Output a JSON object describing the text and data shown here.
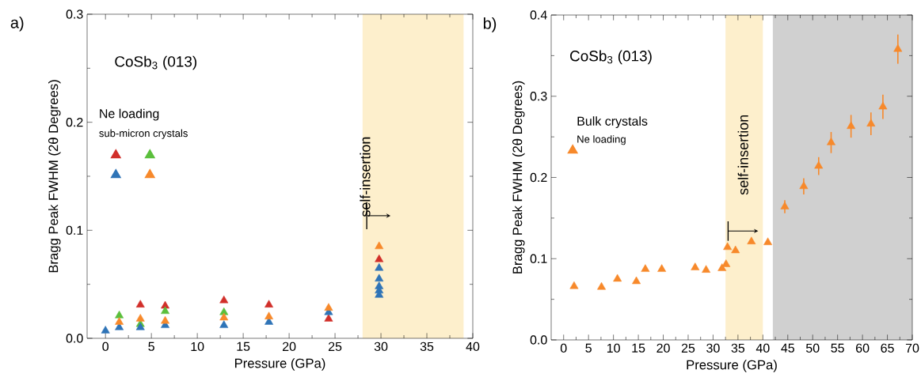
{
  "chart_data": [
    {
      "type": "scatter",
      "xlabel": "Pressure (GPa)",
      "ylabel": "Bragg Peak FWHM (2θ Degrees)",
      "annotations": [
        "a)",
        "CoSb$_{3}$ (013)",
        "Ne loading",
        "sub-micron crystals"
      ],
      "xlim": [
        -2,
        40
      ],
      "xticks": [
        0,
        5,
        10,
        15,
        20,
        25,
        30,
        35,
        40
      ],
      "ylim": [
        0,
        0.3
      ],
      "yticks": [
        {
          "value": 0,
          "label": "0.0"
        },
        0.1,
        0.2,
        0.3
      ],
      "grid": false,
      "marker": "triangle",
      "bands": [
        {
          "axis": "x",
          "from": 28,
          "to": 39,
          "label": "self-insertion",
          "color": "#fdefcc"
        }
      ],
      "series": [
        {
          "color": "#d12f2a",
          "x": [
            3.8,
            6.5,
            12.9,
            17.8,
            24.3,
            29.8
          ],
          "values": [
            0.031,
            0.03,
            0.035,
            0.031,
            0.018,
            0.073
          ]
        },
        {
          "color": "#5bbf3c",
          "x": [
            1.5,
            3.8,
            6.5,
            12.9
          ],
          "values": [
            0.021,
            0.013,
            0.025,
            0.024
          ]
        },
        {
          "color": "#2f74b7",
          "x": [
            0,
            1.5,
            3.8,
            6.5,
            12.9,
            17.8,
            24.3,
            29.8,
            29.8,
            29.8,
            29.8,
            29.8
          ],
          "values": [
            0.007,
            0.01,
            0.01,
            0.012,
            0.012,
            0.015,
            0.024,
            0.065,
            0.055,
            0.048,
            0.044,
            0.04
          ]
        },
        {
          "color": "#f7892b",
          "x": [
            1.5,
            3.8,
            6.5,
            12.9,
            17.8,
            24.3,
            29.8
          ],
          "values": [
            0.015,
            0.018,
            0.016,
            0.019,
            0.02,
            0.028,
            0.085
          ]
        }
      ]
    },
    {
      "type": "scatter",
      "xlabel": "Pressure (GPa)",
      "ylabel": "Bragg Peak FWHM (2θ Degrees)",
      "annotations": [
        "b)",
        "CoSb$_{3}$ (013)",
        "Bulk crystals",
        "Ne loading"
      ],
      "xlim": [
        -2.5,
        70
      ],
      "xticks": [
        0,
        5,
        10,
        15,
        20,
        25,
        30,
        35,
        40,
        45,
        50,
        55,
        60,
        65,
        70
      ],
      "ylim": [
        0,
        0.4
      ],
      "yticks": [
        {
          "value": 0,
          "label": "0.0"
        },
        0.1,
        0.2,
        0.3,
        0.4
      ],
      "grid": false,
      "marker": "triangle",
      "bands": [
        {
          "axis": "x",
          "from": 32.5,
          "to": 40,
          "label": "self-insertion",
          "color": "#fdefcc"
        },
        {
          "axis": "x",
          "from": 42,
          "to": 70,
          "color": "#d0d0d0"
        }
      ],
      "series": [
        {
          "color": "#f7892b",
          "x": [
            2.1,
            7.6,
            10.8,
            14.6,
            16.4,
            19.7,
            26.4,
            28.6,
            31.8,
            32.6,
            32.9,
            34.5,
            37.7,
            41.0,
            44.4,
            48.2,
            51.2,
            53.7,
            57.7,
            61.7,
            64.1,
            67.1
          ],
          "values": [
            0.066,
            0.065,
            0.075,
            0.072,
            0.087,
            0.087,
            0.089,
            0.086,
            0.088,
            0.093,
            0.114,
            0.11,
            0.121,
            0.12,
            0.164,
            0.189,
            0.214,
            0.243,
            0.263,
            0.266,
            0.287,
            0.358
          ],
          "errors": [
            null,
            null,
            null,
            null,
            null,
            null,
            null,
            null,
            null,
            null,
            null,
            null,
            null,
            null,
            0.008,
            0.01,
            0.011,
            0.013,
            0.014,
            0.014,
            0.015,
            0.018
          ]
        }
      ]
    }
  ]
}
